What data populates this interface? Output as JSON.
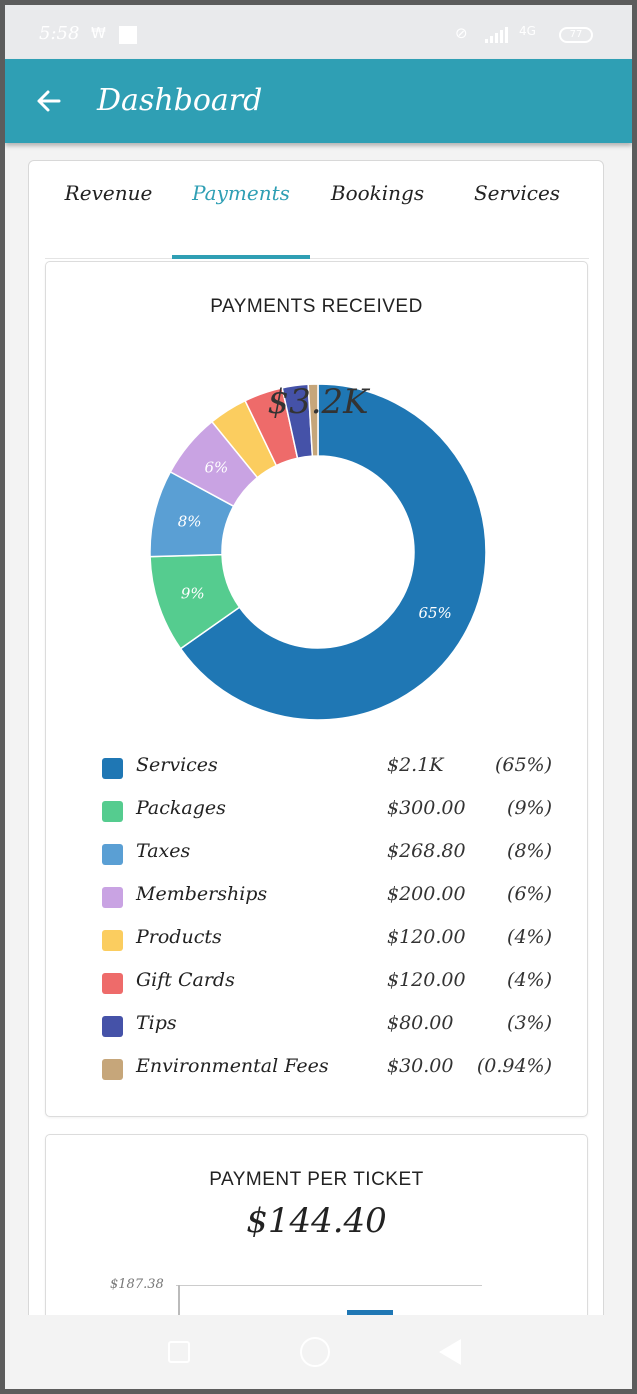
{
  "status_bar": {
    "time": "5:58",
    "indicator": "₩",
    "battery": "77",
    "network": "4G"
  },
  "app_bar": {
    "back_icon": "arrow-left-icon",
    "title": "Dashboard"
  },
  "tabs": [
    {
      "label": "Revenue",
      "active": false
    },
    {
      "label": "Payments",
      "active": true
    },
    {
      "label": "Bookings",
      "active": false
    },
    {
      "label": "Services",
      "active": false
    }
  ],
  "colors": {
    "accent": "#2f9fb4",
    "services": "#1f77b4",
    "packages": "#55cc8f",
    "taxes": "#5a9fd4",
    "memberships": "#c9a3e3",
    "products": "#fbcd5f",
    "gift_cards": "#ee6b6a",
    "tips": "#4552a8",
    "environmental_fees": "#c6a67a"
  },
  "payments_received": {
    "title": "PAYMENTS RECEIVED",
    "total": "$3.2K"
  },
  "chart_data": {
    "type": "pie",
    "categories": [
      "Services",
      "Packages",
      "Taxes",
      "Memberships",
      "Products",
      "Gift Cards",
      "Tips",
      "Environmental Fees"
    ],
    "values": [
      2100,
      300.0,
      268.8,
      200.0,
      120.0,
      120.0,
      80.0,
      30.0
    ],
    "percents": [
      65,
      9,
      8,
      6,
      4,
      4,
      3,
      0.94
    ],
    "slice_labels": [
      "65%",
      "9%",
      "8%",
      "6%",
      "",
      "",
      "",
      ""
    ],
    "colors": [
      "#1f77b4",
      "#55cc8f",
      "#5a9fd4",
      "#c9a3e3",
      "#fbcd5f",
      "#ee6b6a",
      "#4552a8",
      "#c6a67a"
    ],
    "title": "PAYMENTS RECEIVED",
    "center_label": "$3.2K"
  },
  "legend": [
    {
      "name": "Services",
      "amount": "$2.1K",
      "pct": "(65%)"
    },
    {
      "name": "Packages",
      "amount": "$300.00",
      "pct": "(9%)"
    },
    {
      "name": "Taxes",
      "amount": "$268.80",
      "pct": "(8%)"
    },
    {
      "name": "Memberships",
      "amount": "$200.00",
      "pct": "(6%)"
    },
    {
      "name": "Products",
      "amount": "$120.00",
      "pct": "(4%)"
    },
    {
      "name": "Gift Cards",
      "amount": "$120.00",
      "pct": "(4%)"
    },
    {
      "name": "Tips",
      "amount": "$80.00",
      "pct": "(3%)"
    },
    {
      "name": "Environmental Fees",
      "amount": "$30.00",
      "pct": "(0.94%)"
    }
  ],
  "payment_per_ticket": {
    "title": "PAYMENT PER TICKET",
    "value": "$144.40",
    "axis_max": "$187.38"
  },
  "nav_bar": {
    "recent_icon": "square-icon",
    "home_icon": "circle-icon",
    "back_icon": "triangle-back-icon"
  }
}
